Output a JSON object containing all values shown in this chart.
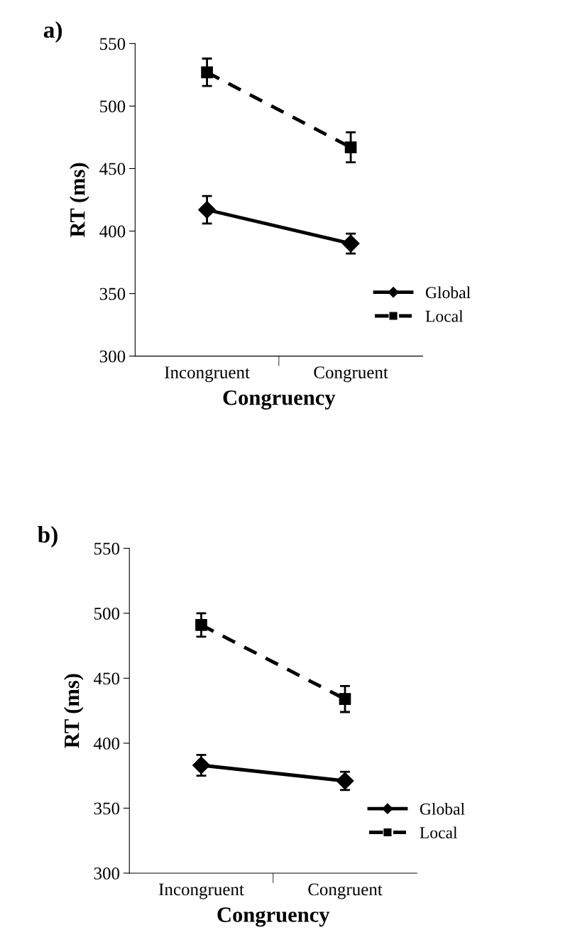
{
  "chart_data": [
    {
      "type": "line",
      "title": "a)",
      "xlabel": "Congruency",
      "ylabel": "RT (ms)",
      "categories": [
        "Incongruent",
        "Congruent"
      ],
      "ylim": [
        300,
        550
      ],
      "yticks": [
        300,
        350,
        400,
        450,
        500,
        550
      ],
      "grid": false,
      "legend": "bottom right",
      "series": [
        {
          "name": "Global",
          "color": "#000000",
          "values": [
            417,
            390
          ],
          "errors": [
            11,
            8
          ],
          "marker": "diamond",
          "line_style": "solid"
        },
        {
          "name": "Local",
          "color": "#000000",
          "values": [
            527,
            467
          ],
          "errors": [
            11,
            12
          ],
          "marker": "square",
          "line_style": "dashed"
        }
      ]
    },
    {
      "type": "line",
      "title": "b)",
      "xlabel": "Congruency",
      "ylabel": "RT (ms)",
      "categories": [
        "Incongruent",
        "Congruent"
      ],
      "ylim": [
        300,
        550
      ],
      "yticks": [
        300,
        350,
        400,
        450,
        500,
        550
      ],
      "grid": false,
      "legend": "bottom right",
      "series": [
        {
          "name": "Global",
          "color": "#000000",
          "values": [
            383,
            371
          ],
          "errors": [
            8,
            7
          ],
          "marker": "diamond",
          "line_style": "solid"
        },
        {
          "name": "Local",
          "color": "#000000",
          "values": [
            491,
            434
          ],
          "errors": [
            9,
            10
          ],
          "marker": "square",
          "line_style": "dashed"
        }
      ]
    }
  ]
}
